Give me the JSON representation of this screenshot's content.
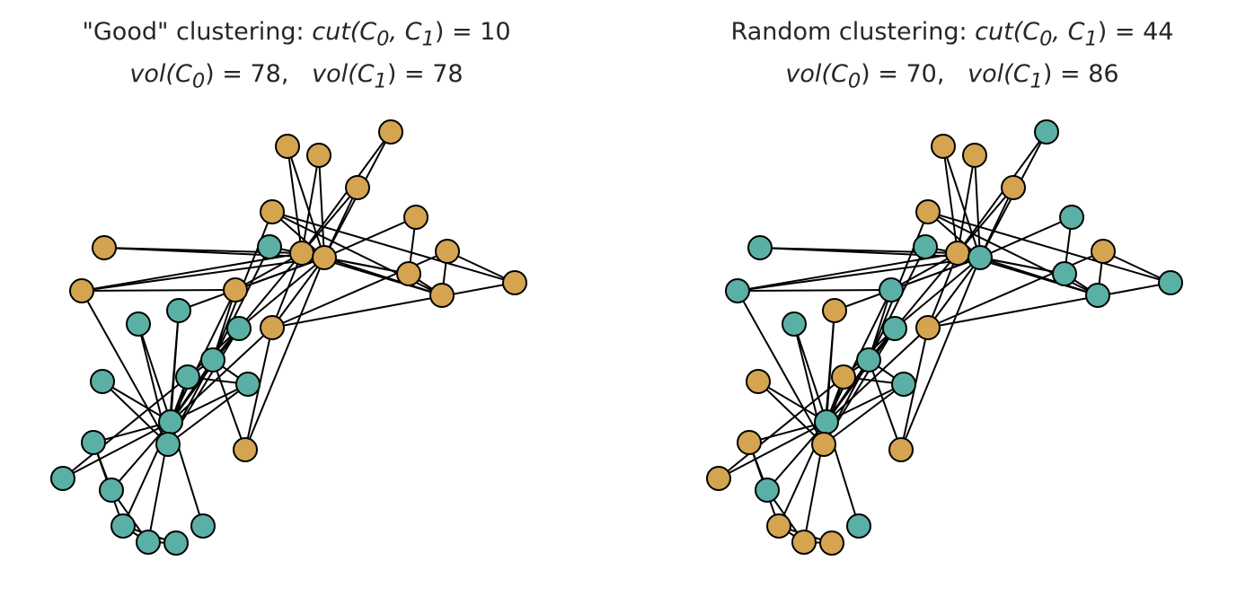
{
  "colors": {
    "cluster_0": "#5bb0a5",
    "cluster_1": "#d4a451",
    "edge": "#000000",
    "text": "#262626",
    "background": "#ffffff"
  },
  "panels": [
    {
      "title_line1_prefix": "\"Good\" clustering: ",
      "title_line1_cut": "cut(C",
      "title_line1_sub0": "0",
      "title_line1_mid": ", C",
      "title_line1_sub1": "1",
      "title_line1_suffix": ") = 10",
      "vol_label": "vol(C",
      "vol0_sub": "0",
      "vol0_value": ") = 78,   ",
      "vol1_sub": "1",
      "vol1_value": ") = 78",
      "cut": 10,
      "vol_c0": 78,
      "vol_c1": 78,
      "assignment": [
        0,
        0,
        0,
        0,
        0,
        0,
        0,
        0,
        1,
        0,
        0,
        0,
        0,
        0,
        1,
        1,
        0,
        0,
        1,
        0,
        1,
        0,
        1,
        1,
        1,
        1,
        1,
        1,
        1,
        1,
        1,
        1,
        1,
        1
      ]
    },
    {
      "title_line1_prefix": "Random clustering: ",
      "title_line1_cut": "cut(C",
      "title_line1_sub0": "0",
      "title_line1_mid": ", C",
      "title_line1_sub1": "1",
      "title_line1_suffix": ") = 44",
      "vol_label": "vol(C",
      "vol0_sub": "0",
      "vol0_value": ") = 70,   ",
      "vol1_sub": "1",
      "vol1_value": ") = 86",
      "cut": 44,
      "vol_c0": 70,
      "vol_c1": 86,
      "assignment": [
        0,
        1,
        0,
        1,
        0,
        1,
        1,
        0,
        0,
        0,
        1,
        0,
        1,
        0,
        1,
        0,
        1,
        1,
        1,
        1,
        1,
        0,
        0,
        0,
        0,
        1,
        0,
        1,
        1,
        0,
        0,
        1,
        1,
        0
      ]
    }
  ],
  "graph": {
    "edges": [
      [
        0,
        1
      ],
      [
        0,
        2
      ],
      [
        0,
        3
      ],
      [
        0,
        4
      ],
      [
        0,
        5
      ],
      [
        0,
        6
      ],
      [
        0,
        7
      ],
      [
        0,
        8
      ],
      [
        0,
        10
      ],
      [
        0,
        11
      ],
      [
        0,
        12
      ],
      [
        0,
        13
      ],
      [
        0,
        17
      ],
      [
        0,
        19
      ],
      [
        0,
        21
      ],
      [
        0,
        31
      ],
      [
        1,
        2
      ],
      [
        1,
        3
      ],
      [
        1,
        7
      ],
      [
        1,
        13
      ],
      [
        1,
        17
      ],
      [
        1,
        19
      ],
      [
        1,
        21
      ],
      [
        1,
        30
      ],
      [
        2,
        3
      ],
      [
        2,
        7
      ],
      [
        2,
        8
      ],
      [
        2,
        9
      ],
      [
        2,
        13
      ],
      [
        2,
        27
      ],
      [
        2,
        28
      ],
      [
        2,
        32
      ],
      [
        3,
        7
      ],
      [
        3,
        12
      ],
      [
        3,
        13
      ],
      [
        4,
        6
      ],
      [
        4,
        10
      ],
      [
        5,
        6
      ],
      [
        5,
        10
      ],
      [
        5,
        16
      ],
      [
        6,
        16
      ],
      [
        8,
        30
      ],
      [
        8,
        32
      ],
      [
        8,
        33
      ],
      [
        9,
        33
      ],
      [
        13,
        33
      ],
      [
        14,
        32
      ],
      [
        14,
        33
      ],
      [
        15,
        32
      ],
      [
        15,
        33
      ],
      [
        18,
        32
      ],
      [
        18,
        33
      ],
      [
        19,
        33
      ],
      [
        20,
        32
      ],
      [
        20,
        33
      ],
      [
        22,
        32
      ],
      [
        22,
        33
      ],
      [
        23,
        25
      ],
      [
        23,
        27
      ],
      [
        23,
        29
      ],
      [
        23,
        32
      ],
      [
        23,
        33
      ],
      [
        24,
        25
      ],
      [
        24,
        27
      ],
      [
        24,
        31
      ],
      [
        25,
        31
      ],
      [
        26,
        29
      ],
      [
        26,
        33
      ],
      [
        27,
        33
      ],
      [
        28,
        31
      ],
      [
        28,
        33
      ],
      [
        29,
        32
      ],
      [
        29,
        33
      ],
      [
        30,
        32
      ],
      [
        30,
        33
      ],
      [
        31,
        32
      ],
      [
        31,
        33
      ],
      [
        32,
        33
      ]
    ]
  }
}
